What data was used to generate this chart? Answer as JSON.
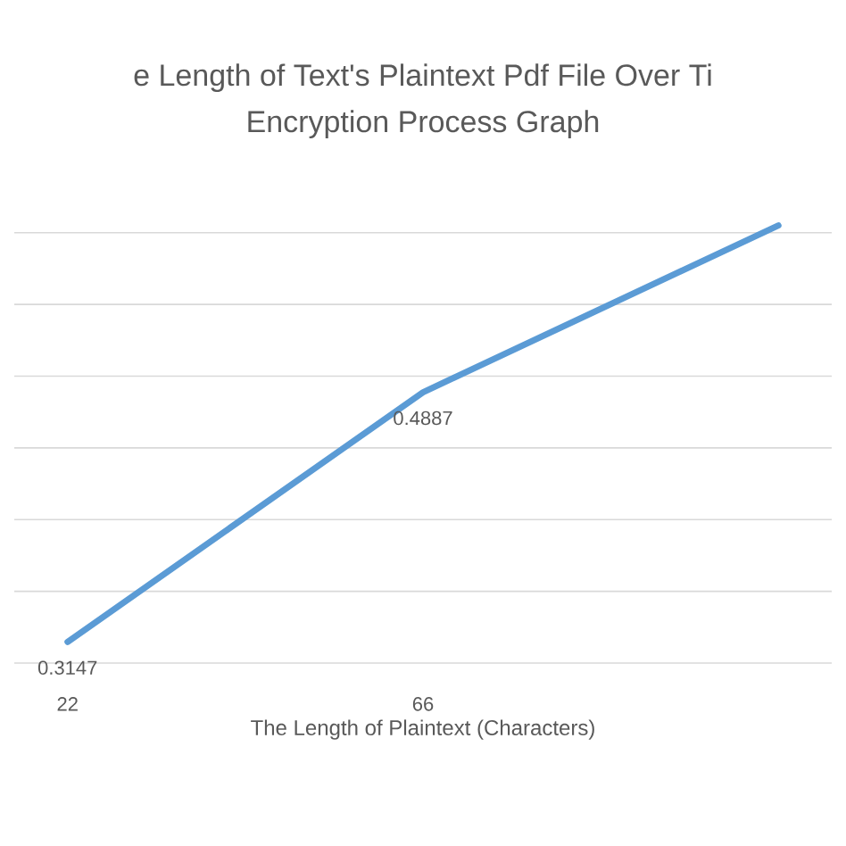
{
  "chart_data": {
    "type": "line",
    "title": "e Length of Text's Plaintext Pdf File Over Ti",
    "subtitle": "Encryption Process Graph",
    "xlabel": "The Length of Plaintext (Characters)",
    "categories": [
      "22",
      "66",
      null
    ],
    "series": [
      {
        "color": "#5b9bd5",
        "values": [
          0.3147,
          0.4887,
          0.605
        ],
        "value_labels": [
          "0.3147",
          "0.4887",
          null
        ]
      }
    ],
    "grid": "y",
    "tick_labels": "x",
    "marker": "none",
    "line_style": "solid",
    "legend": false
  }
}
